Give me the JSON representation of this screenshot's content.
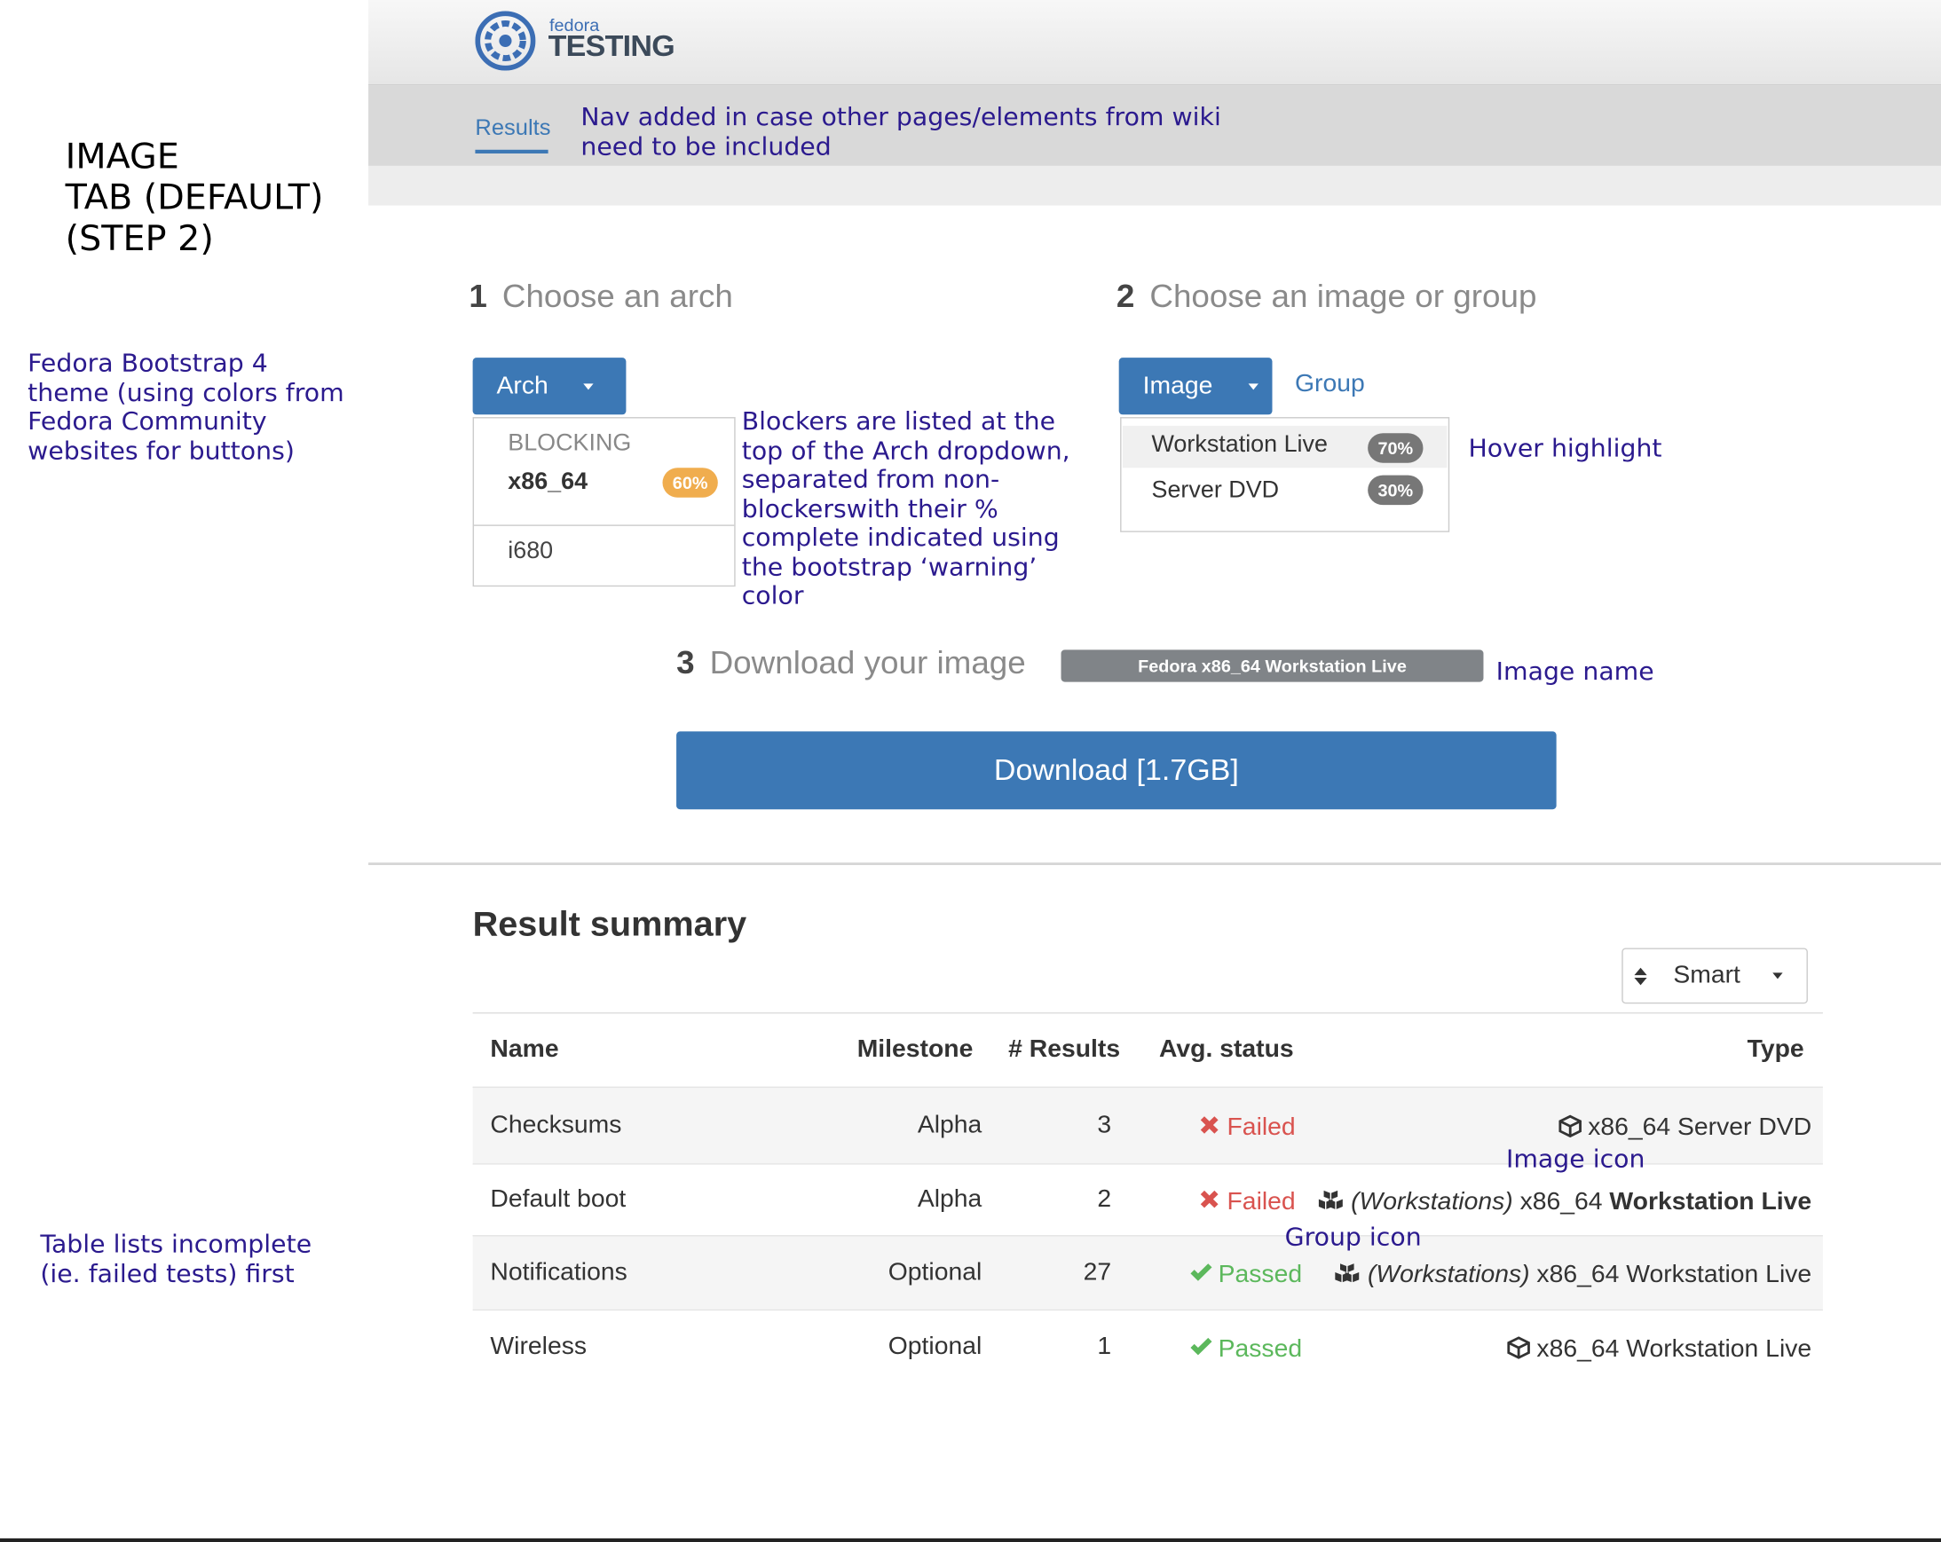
{
  "header": {
    "logo_small": "fedora",
    "logo_big": "TESTING"
  },
  "nav": {
    "tab": "Results"
  },
  "annotations": {
    "page_label": [
      "IMAGE",
      "TAB (DEFAULT)",
      "(STEP 2)"
    ],
    "nav_note": [
      "Nav added in case other pages/elements from wiki",
      "need to be included"
    ],
    "theme_note": [
      "Fedora Bootstrap 4",
      "theme (using colors from",
      "Fedora Community",
      "websites for buttons)"
    ],
    "blockers_note": [
      "Blockers are listed at the",
      "top of the Arch dropdown,",
      "separated from non-",
      "blockerswith their %",
      "complete indicated using",
      "the bootstrap ‘warning’",
      "color"
    ],
    "hover_note": "Hover highlight",
    "image_name_note": "Image name",
    "image_icon_note": "Image  icon",
    "group_icon_note": "Group icon",
    "table_note": [
      "Table lists incomplete",
      "(ie. failed tests) first"
    ]
  },
  "steps": [
    {
      "number": "1",
      "label": "Choose an arch"
    },
    {
      "number": "2",
      "label": "Choose an image or group"
    },
    {
      "number": "3",
      "label": "Download your image"
    }
  ],
  "arch": {
    "button": "Arch",
    "blocking_header": "BLOCKING",
    "items": [
      {
        "name": "x86_64",
        "badge": "60%"
      },
      {
        "name": "i680"
      }
    ]
  },
  "image": {
    "button": "Image",
    "group_link": "Group",
    "items": [
      {
        "name": "Workstation Live",
        "badge": "70%"
      },
      {
        "name": "Server DVD",
        "badge": "30%"
      }
    ]
  },
  "download": {
    "image_name": "Fedora x86_64 Workstation Live",
    "button": "Download [1.7GB]"
  },
  "summary": {
    "title": "Result summary",
    "sort": "Smart",
    "columns": [
      "Name",
      "Milestone",
      "# Results",
      "Avg. status",
      "Type"
    ],
    "rows": [
      {
        "name": "Checksums",
        "milestone": "Alpha",
        "results": 3,
        "status": "Failed",
        "arch": "x86_64",
        "image": "Server DVD"
      },
      {
        "name": "Default boot",
        "milestone": "Alpha",
        "results": 2,
        "status": "Failed",
        "group": "(Workstations)",
        "arch": "x86_64",
        "image": "Workstation Live"
      },
      {
        "name": "Notifications",
        "milestone": "Optional",
        "results": 27,
        "status": "Passed",
        "group": "(Workstations)",
        "arch": "x86_64",
        "image": "Workstation Live"
      },
      {
        "name": "Wireless",
        "milestone": "Optional",
        "results": 1,
        "status": "Passed",
        "arch": "x86_64",
        "image": "Workstation Live"
      }
    ]
  }
}
